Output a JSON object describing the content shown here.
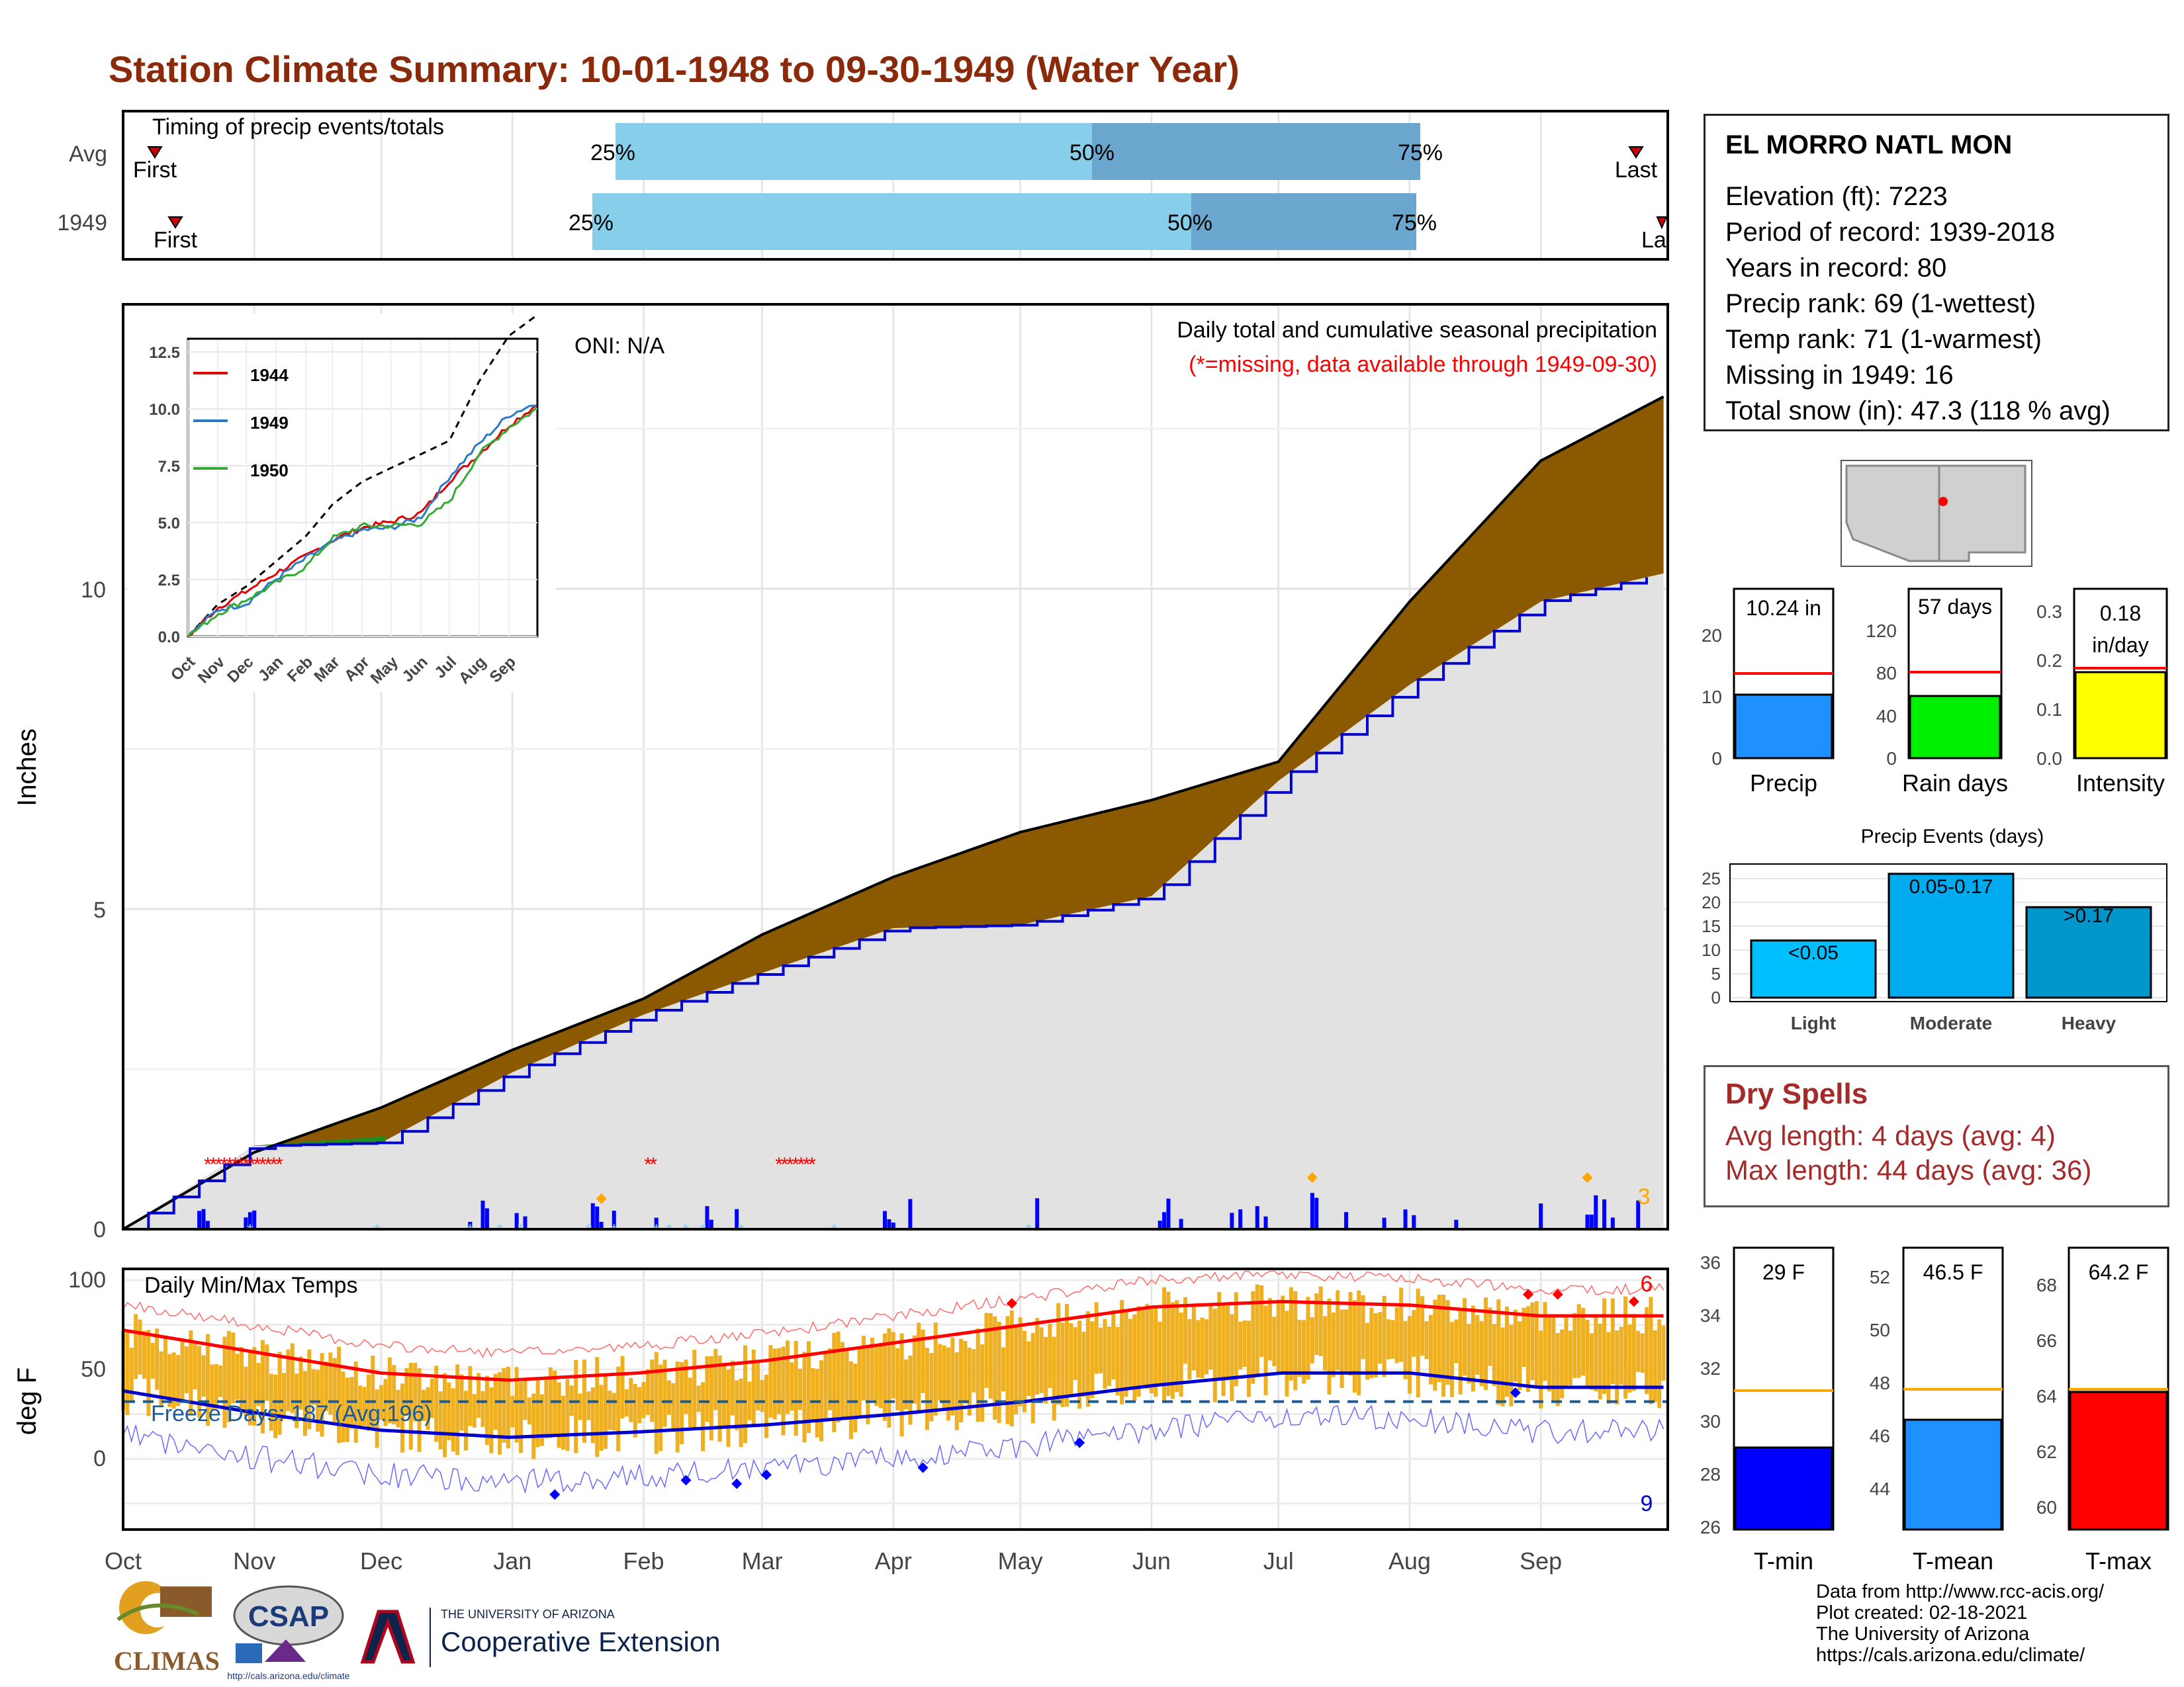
{
  "title": "Station Climate Summary: 10-01-1948 to 09-30-1949 (Water Year)",
  "colors": {
    "title": "#8b2a0a",
    "precip_fill_avg": "#8b5a00",
    "precip_line_1949": "#0000cc",
    "precip_area": "#e2e2e2",
    "tmax": "#ff0000",
    "tmin": "#0000cc",
    "temp_bar": "#eeb020",
    "timing_light": "#87ceeb",
    "timing_dark": "#6aa6cd",
    "dry_spell": "#a52a2a"
  },
  "timing": {
    "label": "Timing of precip events/totals",
    "rows": [
      "Avg",
      "1949"
    ],
    "first": "First",
    "last": "Last",
    "last_clipped": "La",
    "p25": "25%",
    "p50": "50%",
    "p75": "75%"
  },
  "station": {
    "name": "EL MORRO NATL MON",
    "lines": [
      "Elevation (ft): 7223",
      "Period of record: 1939-2018",
      "Years in record: 80",
      "Precip rank: 69 (1-wettest)",
      "Temp rank: 71 (1-warmest)",
      "Missing in 1949: 16",
      "Total snow (in): 47.3 (118 % avg)"
    ]
  },
  "precip_panel": {
    "ylabel": "Inches",
    "oni": "ONI: N/A",
    "caption": "Daily total and cumulative seasonal precipitation",
    "missing_note": "(*=missing, data available through 1949-09-30)",
    "extreme_count": "3",
    "yticks": [
      "0",
      "5",
      "10"
    ]
  },
  "inset": {
    "yticks": [
      "0.0",
      "2.5",
      "5.0",
      "7.5",
      "10.0",
      "12.5"
    ],
    "months": [
      "Oct",
      "Nov",
      "Dec",
      "Jan",
      "Feb",
      "Mar",
      "Apr",
      "May",
      "Jun",
      "Jul",
      "Aug",
      "Sep"
    ],
    "legend": [
      "1944",
      "1949",
      "1950"
    ]
  },
  "summary_bars": [
    {
      "label": "Precip",
      "value_text": "10.24 in",
      "yticks": [
        "0",
        "10",
        "20"
      ]
    },
    {
      "label": "Rain days",
      "value_text": "57 days",
      "yticks": [
        "0",
        "40",
        "80",
        "120"
      ]
    },
    {
      "label": "Intensity",
      "value_text_1": "0.18",
      "value_text_2": "in/day",
      "yticks": [
        "0.0",
        "0.1",
        "0.2",
        "0.3"
      ]
    }
  ],
  "precip_events": {
    "title": "Precip Events (days)",
    "yticks": [
      "0",
      "5",
      "10",
      "15",
      "20",
      "25"
    ],
    "bars": [
      {
        "label": "Light",
        "range": "<0.05"
      },
      {
        "label": "Moderate",
        "range": "0.05-0.17"
      },
      {
        "label": "Heavy",
        "range": ">0.17"
      }
    ]
  },
  "dry_spells": {
    "title": "Dry Spells",
    "avg": "Avg length: 4 days (avg: 4)",
    "max": "Max length: 44 days (avg: 36)"
  },
  "temp_panel": {
    "ylabel": "deg F",
    "label": "Daily Min/Max Temps",
    "freeze": "Freeze Days: 187 (Avg:196)",
    "hot_count": "6",
    "cold_count": "9",
    "yticks": [
      "0",
      "50",
      "100"
    ],
    "months": [
      "Oct",
      "Nov",
      "Dec",
      "Jan",
      "Feb",
      "Mar",
      "Apr",
      "May",
      "Jun",
      "Jul",
      "Aug",
      "Sep"
    ]
  },
  "temp_bars": [
    {
      "label": "T-min",
      "value_text": "29 F",
      "yticks": [
        "26",
        "28",
        "30",
        "32",
        "34",
        "36"
      ]
    },
    {
      "label": "T-mean",
      "value_text": "46.5 F",
      "yticks": [
        "44",
        "46",
        "48",
        "50",
        "52"
      ]
    },
    {
      "label": "T-max",
      "value_text": "64.2 F",
      "yticks": [
        "60",
        "62",
        "64",
        "66",
        "68"
      ]
    }
  ],
  "credits": [
    "Data from http://www.rcc-acis.org/",
    "Plot created: 02-18-2021",
    "The University of Arizona",
    "https://cals.arizona.edu/climate/"
  ],
  "logos": {
    "climas": "CLIMAS",
    "csap": "CSAP",
    "csap_url": "http://cals.arizona.edu/climate",
    "ua_small": "THE UNIVERSITY OF ARIZONA",
    "coop": "Cooperative Extension"
  },
  "chart_data": [
    {
      "type": "area",
      "title": "Daily total and cumulative seasonal precipitation",
      "ylabel": "Inches",
      "ylim": [
        0,
        13.5
      ],
      "x": [
        "1948-10-01",
        "1948-11-01",
        "1948-12-01",
        "1949-01-01",
        "1949-02-01",
        "1949-03-01",
        "1949-04-01",
        "1949-05-01",
        "1949-06-01",
        "1949-07-01",
        "1949-08-01",
        "1949-09-01",
        "1949-09-30"
      ],
      "series": [
        {
          "name": "Avg",
          "values": [
            0.0,
            1.2,
            1.9,
            2.8,
            3.6,
            4.6,
            5.5,
            6.2,
            6.7,
            7.3,
            9.8,
            12.0,
            13.0
          ]
        },
        {
          "name": "1949",
          "values": [
            0.0,
            1.3,
            1.35,
            2.45,
            3.35,
            4.0,
            4.7,
            4.75,
            5.2,
            7.0,
            8.5,
            9.8,
            10.24
          ]
        }
      ]
    },
    {
      "type": "line",
      "title": "Daily Min/Max Temps",
      "ylabel": "deg F",
      "ylim": [
        -40,
        105
      ],
      "x": [
        "Oct",
        "Nov",
        "Dec",
        "Jan",
        "Feb",
        "Mar",
        "Apr",
        "May",
        "Jun",
        "Jul",
        "Aug",
        "Sep"
      ],
      "series": [
        {
          "name": "Avg max",
          "values": [
            72,
            60,
            48,
            44,
            48,
            55,
            65,
            75,
            85,
            88,
            86,
            80
          ]
        },
        {
          "name": "Avg min",
          "values": [
            38,
            26,
            16,
            12,
            15,
            19,
            25,
            32,
            41,
            48,
            48,
            40
          ]
        }
      ]
    },
    {
      "type": "bar",
      "categories": [
        "Light",
        "Moderate",
        "Heavy"
      ],
      "values": [
        12,
        26,
        19
      ],
      "ylim": [
        0,
        27
      ]
    },
    {
      "type": "bar",
      "categories": [
        "Precip",
        "Rain days",
        "Intensity"
      ],
      "series": [
        {
          "name": "1949",
          "values": [
            10.24,
            57,
            0.18
          ]
        },
        {
          "name": "Avg",
          "values": [
            13.0,
            78,
            0.175
          ]
        }
      ]
    },
    {
      "type": "bar",
      "categories": [
        "T-min",
        "T-mean",
        "T-max"
      ],
      "series": [
        {
          "name": "1949",
          "values": [
            29,
            46.5,
            64.2
          ]
        },
        {
          "name": "Avg",
          "values": [
            31.2,
            47.8,
            64.3
          ]
        }
      ]
    }
  ]
}
